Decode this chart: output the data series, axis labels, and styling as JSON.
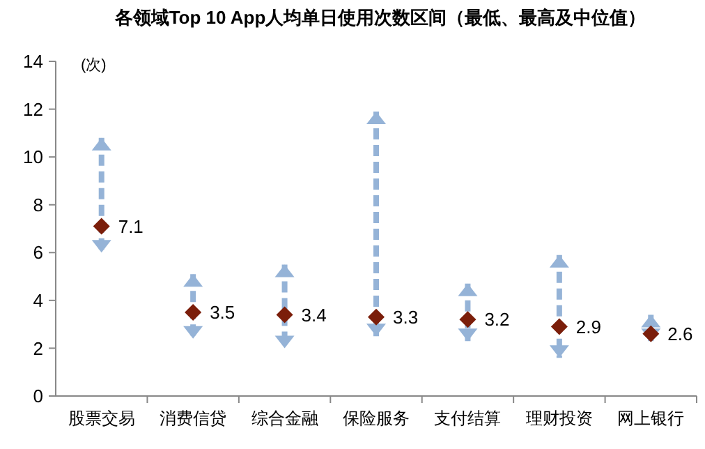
{
  "chart_data": {
    "type": "scatter",
    "title": "各领域Top 10 App人均单日使用次数区间（最低、最高及中位值）",
    "ylabel": "(次)",
    "categories": [
      "股票交易",
      "消费信贷",
      "综合金融",
      "保险服务",
      "支付结算",
      "理财投资",
      "网上银行"
    ],
    "series": [
      {
        "color": "#7b1e0a",
        "values": [
          7.1,
          3.5,
          3.4,
          3.3,
          3.2,
          2.9,
          2.6
        ],
        "errors": [
          [
            6.0,
            10.8
          ],
          [
            2.4,
            5.1
          ],
          [
            2.0,
            5.5
          ],
          [
            2.5,
            11.9
          ],
          [
            2.3,
            4.7
          ],
          [
            1.6,
            5.9
          ],
          [
            2.3,
            3.4
          ]
        ]
      }
    ],
    "ylim": [
      0,
      14
    ],
    "yticks": [
      0,
      2,
      4,
      6,
      8,
      10,
      12,
      14
    ],
    "marker": "diamond",
    "data_labels": true,
    "grid": false
  }
}
